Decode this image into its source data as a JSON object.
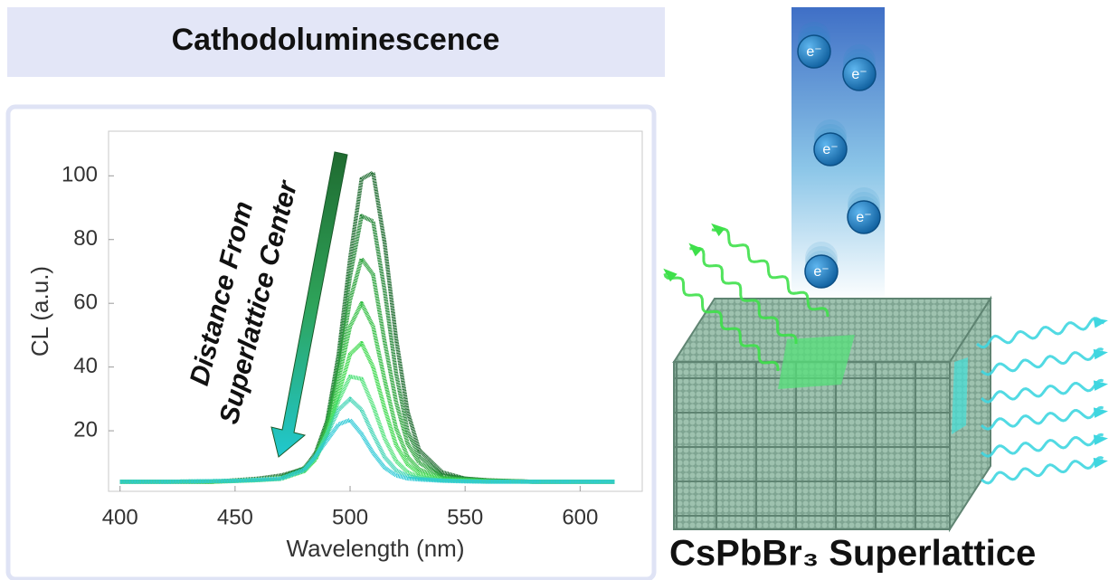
{
  "header": {
    "title": "Cathodoluminescence"
  },
  "chart_data": {
    "type": "line",
    "xlabel": "Wavelength (nm)",
    "ylabel": "CL (a.u.)",
    "annotation": [
      "Distance From",
      "Superlattice Center"
    ],
    "x": [
      400,
      420,
      440,
      450,
      460,
      470,
      480,
      485,
      490,
      495,
      500,
      505,
      510,
      515,
      520,
      525,
      530,
      540,
      550,
      560,
      580,
      600,
      615
    ],
    "series": [
      {
        "color": "#1f6b30",
        "values": [
          4,
          4,
          4,
          4.5,
          5,
          6,
          8,
          13,
          23,
          44,
          74,
          99,
          101,
          79,
          49,
          26,
          14,
          7,
          5,
          4.5,
          4,
          4,
          4
        ]
      },
      {
        "color": "#27883a",
        "values": [
          4,
          4,
          4,
          4.4,
          4.9,
          5.5,
          8.3,
          12.6,
          23,
          42.7,
          68.5,
          87.4,
          85.7,
          64,
          38,
          20,
          12,
          6,
          5,
          4.4,
          4,
          4,
          4
        ]
      },
      {
        "color": "#2ea33e",
        "values": [
          4,
          4,
          4,
          4.4,
          4.7,
          5.2,
          7.5,
          12,
          22,
          39,
          61,
          74,
          69,
          48,
          29,
          16,
          10,
          5.5,
          4.8,
          4.3,
          4,
          4,
          4
        ]
      },
      {
        "color": "#35bf45",
        "values": [
          4,
          4,
          4,
          4.3,
          4.6,
          5,
          7.9,
          11.8,
          20.8,
          36,
          52.7,
          60,
          52.7,
          36,
          20.8,
          11.8,
          7.9,
          5.1,
          4.6,
          4.3,
          4,
          4,
          4
        ]
      },
      {
        "color": "#3fd94e",
        "values": [
          4,
          4,
          4,
          4.2,
          4.5,
          4.9,
          7.3,
          11,
          19,
          31.7,
          44,
          47.5,
          40,
          27,
          15.5,
          9.5,
          6.6,
          4.9,
          4.5,
          4.2,
          4,
          4,
          4
        ]
      },
      {
        "color": "#50e27a",
        "values": [
          4,
          4,
          4.2,
          4.3,
          4.5,
          5.2,
          7.4,
          11.5,
          19.3,
          29.5,
          37,
          36.3,
          27.8,
          17.6,
          10.5,
          7,
          5.5,
          4.5,
          4.3,
          4.1,
          4,
          4,
          4
        ]
      },
      {
        "color": "#3fd4b4",
        "values": [
          4,
          4,
          4.2,
          4.3,
          4.6,
          5,
          7.6,
          11.8,
          18.8,
          26.6,
          30,
          26.6,
          18.8,
          11.8,
          7.6,
          5.8,
          5,
          4.4,
          4.2,
          4,
          4,
          4,
          4
        ]
      },
      {
        "color": "#2cc9d6",
        "values": [
          4,
          4,
          4.2,
          4.3,
          4.6,
          5,
          7.8,
          12,
          17,
          22,
          23.4,
          19,
          13,
          8.4,
          6,
          5,
          4.7,
          4.3,
          4.1,
          4,
          4,
          4,
          4
        ]
      }
    ],
    "xlim": [
      395,
      627
    ],
    "ylim": [
      1,
      114
    ],
    "xticks": [
      400,
      450,
      500,
      550,
      600
    ],
    "yticks": [
      20,
      40,
      60,
      80,
      100
    ]
  },
  "illustration": {
    "electrons": [
      "e⁻",
      "e⁻",
      "e⁻",
      "e⁻",
      "e⁻"
    ],
    "caption": "CsPbBr₃ Superlattice"
  }
}
